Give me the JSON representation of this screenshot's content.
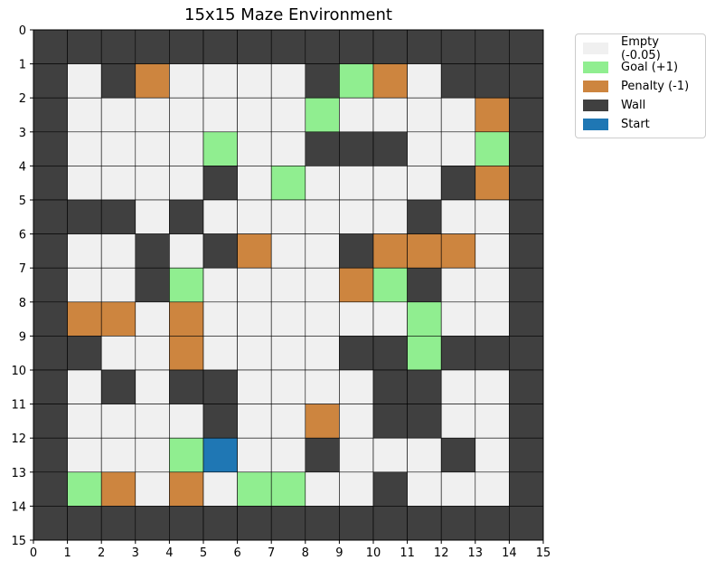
{
  "chart_data": {
    "type": "heatmap",
    "title": "15x15 Maze Environment",
    "xlabel": "",
    "ylabel": "",
    "x_ticks": [
      "0",
      "1",
      "2",
      "3",
      "4",
      "5",
      "6",
      "7",
      "8",
      "9",
      "10",
      "11",
      "12",
      "13",
      "14",
      "15"
    ],
    "y_ticks": [
      "0",
      "1",
      "2",
      "3",
      "4",
      "5",
      "6",
      "7",
      "8",
      "9",
      "10",
      "11",
      "12",
      "13",
      "14",
      "15"
    ],
    "xlim": [
      0,
      15
    ],
    "ylim": [
      15,
      0
    ],
    "grid": true,
    "legend_position": "upper-right-outside",
    "legend": [
      {
        "key": "E",
        "label": "Empty (-0.05)",
        "color": "#f0f0f0"
      },
      {
        "key": "G",
        "label": "Goal (+1)",
        "color": "#90ee90"
      },
      {
        "key": "P",
        "label": "Penalty (-1)",
        "color": "#cd853f"
      },
      {
        "key": "W",
        "label": "Wall",
        "color": "#404040"
      },
      {
        "key": "S",
        "label": "Start",
        "color": "#1f77b4"
      }
    ],
    "grid_rows": [
      "WWWWWWWWWWWWWWW",
      "WEWPEEEEWGPEWWW",
      "WEEEEEEEGEEEEPW",
      "WEEEEGEEWWWEEGW",
      "WEEEEWEGEEEEWPW",
      "WWWEWEEEEEEWEEW",
      "WEEWEWPEEWPPPEW",
      "WEEWGEEEEPGWEEW",
      "WPPEPEEEEEEGEEW",
      "WWEEPEEEEWWGWWW",
      "WEWEWWEEEEWWEEW",
      "WEEEEWEEPEWWEEW",
      "WEEEGSEEWEEEWEW",
      "WGPEPEGGEEWEEEW",
      "WWWWWWWWWWWWWWW"
    ]
  }
}
